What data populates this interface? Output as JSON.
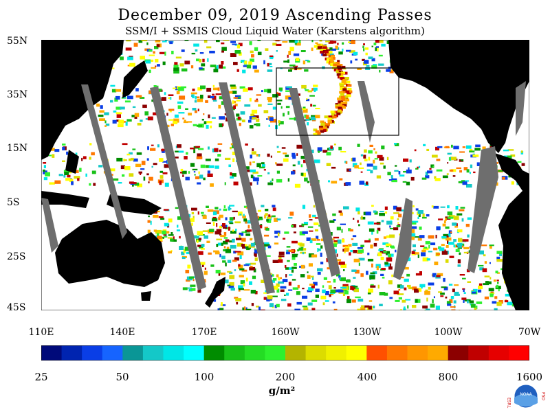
{
  "title": "December 09, 2019  Ascending Passes",
  "subtitle": "SSM/I + SSMIS Cloud Liquid Water (Karstens algorithm)",
  "lat_labels": [
    "55N",
    "35N",
    "15N",
    "5S",
    "25S",
    "45S"
  ],
  "lon_labels": [
    "110E",
    "140E",
    "170E",
    "160W",
    "130W",
    "100W",
    "70W"
  ],
  "colorbar": {
    "colors": [
      "#000a7a",
      "#0024b0",
      "#0a3ee6",
      "#1664ff",
      "#0a9696",
      "#14c8c8",
      "#00e6e6",
      "#00ffff",
      "#008c00",
      "#18c018",
      "#24dc24",
      "#2ef02e",
      "#b4b400",
      "#dcdc00",
      "#f0f000",
      "#ffff00",
      "#ff5000",
      "#ff7800",
      "#ff9600",
      "#ffaa00",
      "#8c0000",
      "#c00000",
      "#e60000",
      "#ff0000"
    ],
    "tick_labels": [
      "25",
      "50",
      "100",
      "200",
      "400",
      "800",
      "1600"
    ]
  },
  "units": "g/m²",
  "logo": {
    "left_text": "ESRL",
    "right_text": "PSD",
    "center_text": "NOAA"
  }
}
